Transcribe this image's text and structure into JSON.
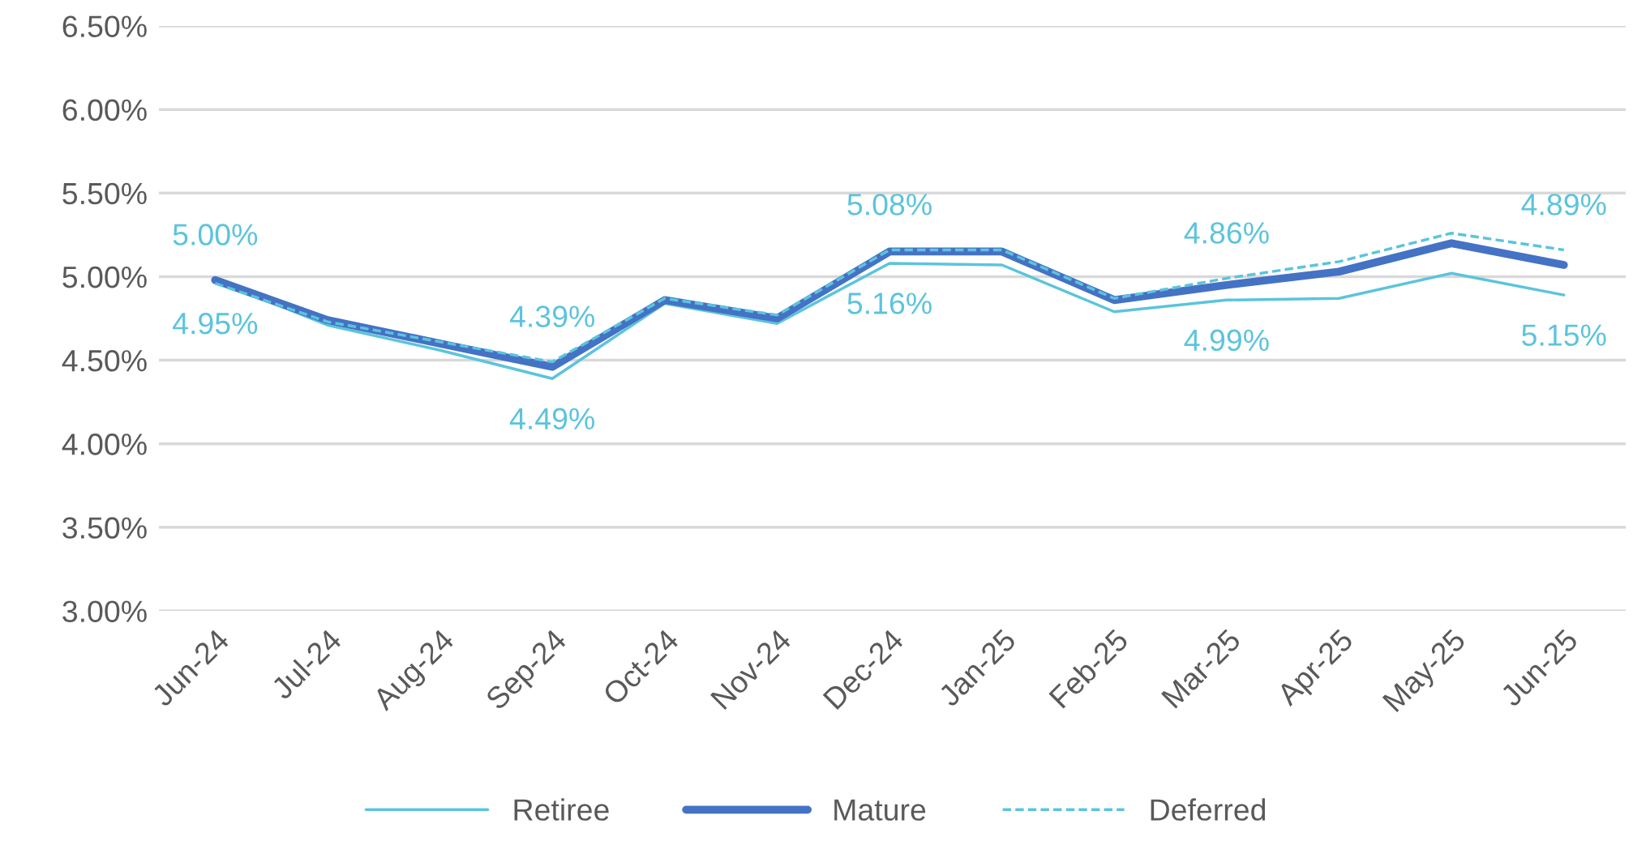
{
  "chart_data": {
    "type": "line",
    "categories": [
      "Jun-24",
      "Jul-24",
      "Aug-24",
      "Sep-24",
      "Oct-24",
      "Nov-24",
      "Dec-24",
      "Jan-25",
      "Feb-25",
      "Mar-25",
      "Apr-25",
      "May-25",
      "Jun-25"
    ],
    "series": [
      {
        "name": "Retiree",
        "color": "#5bc4dc",
        "line_style": "solid",
        "values": [
          4.98,
          4.71,
          4.56,
          4.39,
          4.84,
          4.72,
          5.08,
          5.07,
          4.79,
          4.86,
          4.87,
          5.02,
          4.89
        ]
      },
      {
        "name": "Mature",
        "color": "#4472c4",
        "line_style": "solid",
        "values": [
          4.98,
          4.74,
          4.6,
          4.46,
          4.86,
          4.75,
          5.15,
          5.15,
          4.86,
          4.95,
          5.03,
          5.2,
          5.07
        ]
      },
      {
        "name": "Deferred",
        "color": "#5bc4dc",
        "line_style": "dashed",
        "values": [
          4.96,
          4.73,
          4.61,
          4.49,
          4.87,
          4.77,
          5.16,
          5.16,
          4.87,
          4.99,
          5.09,
          5.26,
          5.16
        ]
      }
    ],
    "ylim": [
      3.0,
      6.5
    ],
    "yticks": [
      {
        "value": 3.0,
        "label": "3.00%"
      },
      {
        "value": 3.5,
        "label": "3.50%"
      },
      {
        "value": 4.0,
        "label": "4.00%"
      },
      {
        "value": 4.5,
        "label": "4.50%"
      },
      {
        "value": 5.0,
        "label": "5.00%"
      },
      {
        "value": 5.5,
        "label": "5.50%"
      },
      {
        "value": 6.0,
        "label": "6.00%"
      },
      {
        "value": 6.5,
        "label": "6.50%"
      }
    ],
    "grid": "y",
    "legend": "bottom",
    "marker": "none",
    "annotations": [
      "5.00%",
      "4.95%",
      "4.39%",
      "4.49%",
      "5.08%",
      "5.16%",
      "4.86%",
      "4.99%",
      "4.89%",
      "5.15%"
    ]
  }
}
